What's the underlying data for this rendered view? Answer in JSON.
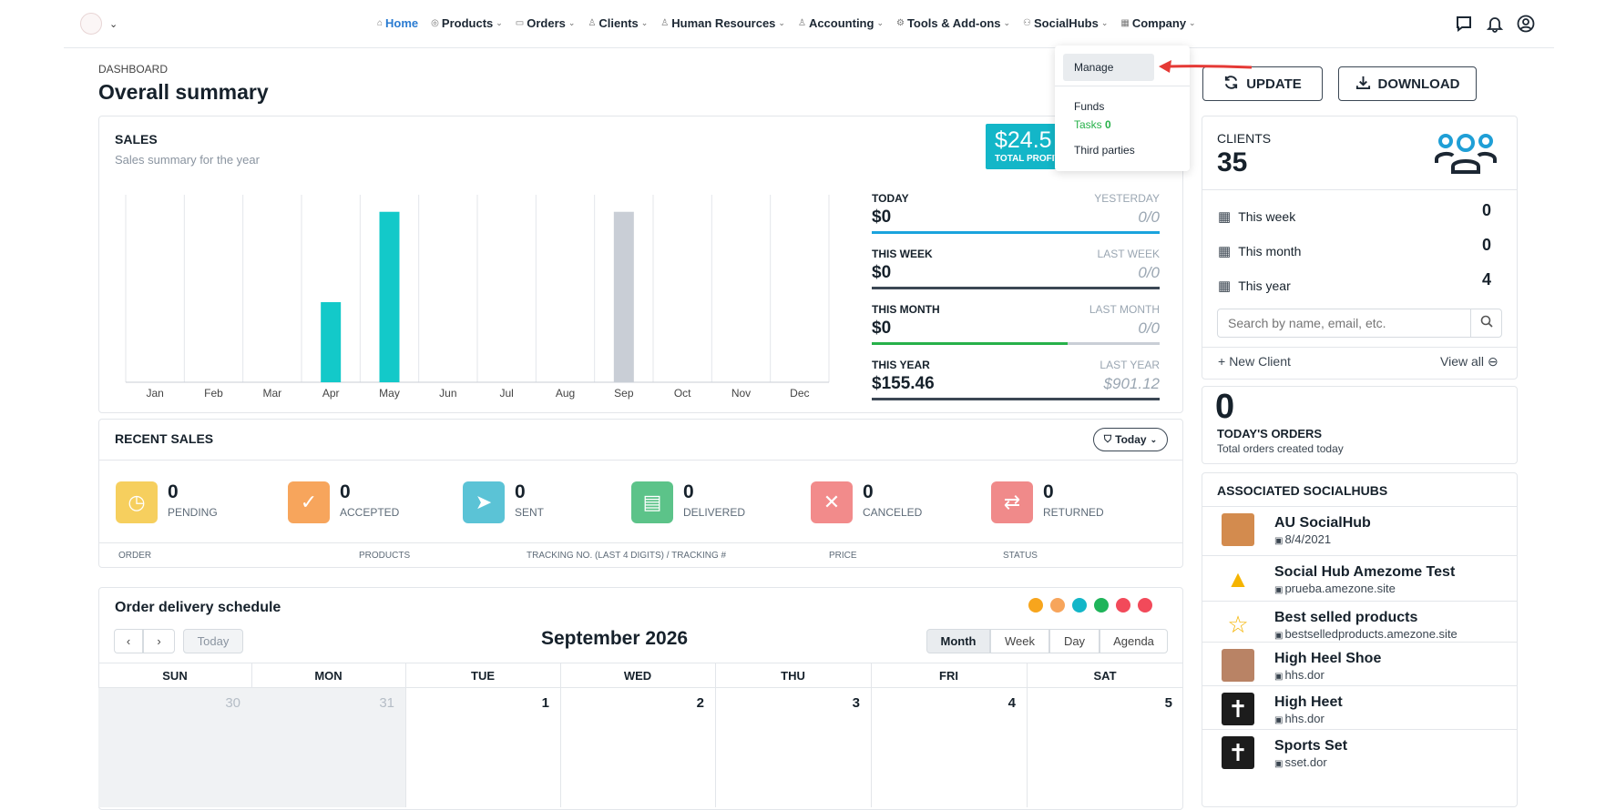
{
  "nav": {
    "items": [
      {
        "label": "Home",
        "active": true
      },
      {
        "label": "Products"
      },
      {
        "label": "Orders"
      },
      {
        "label": "Clients"
      },
      {
        "label": "Human Resources"
      },
      {
        "label": "Accounting"
      },
      {
        "label": "Tools & Add-ons"
      },
      {
        "label": "SocialHubs"
      },
      {
        "label": "Company"
      }
    ]
  },
  "header": {
    "breadcrumb": "DASHBOARD",
    "title": "Overall summary",
    "update_label": "UPDATE",
    "download_label": "DOWNLOAD"
  },
  "dropdown": {
    "manage": "Manage",
    "funds": "Funds",
    "tasks": "Tasks",
    "tasks_count": "0",
    "third_parties": "Third parties"
  },
  "sales": {
    "title": "SALES",
    "subtitle": "Sales summary for the year",
    "profit_value": "$24.5",
    "profit_label": "TOTAL PROFIT",
    "stats": [
      {
        "label": "TODAY",
        "value": "$0",
        "prev_label": "YESTERDAY",
        "prev_value": "0/0",
        "bar_color": "#1aa3dd",
        "fill": 1
      },
      {
        "label": "THIS WEEK",
        "value": "$0",
        "prev_label": "LAST WEEK",
        "prev_value": "0/0",
        "bar_color": "#3b4754",
        "fill": 1
      },
      {
        "label": "THIS MONTH",
        "value": "$0",
        "prev_label": "LAST MONTH",
        "prev_value": "0/0",
        "bar_color": "#27b14a",
        "fill": 0.68
      },
      {
        "label": "THIS YEAR",
        "value": "$155.46",
        "prev_label": "LAST YEAR",
        "prev_value": "$901.12",
        "bar_color": "#3b4754",
        "fill": 1
      }
    ]
  },
  "chart_data": {
    "type": "bar",
    "categories": [
      "Jan",
      "Feb",
      "Mar",
      "Apr",
      "May",
      "Jun",
      "Jul",
      "Aug",
      "Sep",
      "Oct",
      "Nov",
      "Dec"
    ],
    "series": [
      {
        "values": [
          0,
          0,
          0,
          0.47,
          1,
          0,
          0,
          0,
          0,
          0,
          0,
          0
        ],
        "color": "#13c9c9"
      },
      {
        "values": [
          0,
          0,
          0,
          0,
          0,
          0,
          0,
          0,
          1,
          0,
          0,
          0
        ],
        "color": "#c9ced6"
      }
    ],
    "ylim": [
      0,
      1.1
    ],
    "grid": true
  },
  "recent": {
    "title": "RECENT SALES",
    "filter_label": "Today",
    "statuses": [
      {
        "count": "0",
        "label": "PENDING",
        "color": "#f6cf5e",
        "icon": "clock-icon",
        "glyph": "◷"
      },
      {
        "count": "0",
        "label": "ACCEPTED",
        "color": "#f7a55c",
        "icon": "check-icon",
        "glyph": "✓"
      },
      {
        "count": "0",
        "label": "SENT",
        "color": "#5bc3d6",
        "icon": "paper-plane-icon",
        "glyph": "➤"
      },
      {
        "count": "0",
        "label": "DELIVERED",
        "color": "#5cc389",
        "icon": "clipboard-check-icon",
        "glyph": "▤"
      },
      {
        "count": "0",
        "label": "CANCELED",
        "color": "#f28b8b",
        "icon": "x-icon",
        "glyph": "✕"
      },
      {
        "count": "0",
        "label": "RETURNED",
        "color": "#f08a8a",
        "icon": "repeat-icon",
        "glyph": "⇄"
      }
    ],
    "columns": [
      "ORDER",
      "PRODUCTS",
      "TRACKING NO. (LAST 4 DIGITS) / TRACKING #",
      "PRICE",
      "STATUS"
    ]
  },
  "calendar": {
    "title": "Order delivery schedule",
    "month": "September 2026",
    "today_label": "Today",
    "views": [
      "Month",
      "Week",
      "Day",
      "Agenda"
    ],
    "dots": [
      "#f7a51d",
      "#f7a55c",
      "#13b6c8",
      "#1fb45a",
      "#f24a5a",
      "#f24a5a"
    ],
    "days": [
      "SUN",
      "MON",
      "TUE",
      "WED",
      "THU",
      "FRI",
      "SAT"
    ],
    "dates": [
      "30",
      "31",
      "1",
      "2",
      "3",
      "4",
      "5"
    ]
  },
  "clients": {
    "label": "CLIENTS",
    "count": "35",
    "rows": [
      {
        "label": "This week",
        "value": "0"
      },
      {
        "label": "This month",
        "value": "0"
      },
      {
        "label": "This year",
        "value": "4"
      }
    ],
    "search_placeholder": "Search by name, email, etc.",
    "new_label": "New Client",
    "view_all": "View all"
  },
  "orders": {
    "count": "0",
    "label": "TODAY'S ORDERS",
    "sub": "Total orders created today"
  },
  "hubs": {
    "title": "ASSOCIATED SOCIALHUBS",
    "items": [
      {
        "name": "AU SocialHub",
        "sub": "8/4/2021"
      },
      {
        "name": "Social Hub Amezome Test",
        "sub": "prueba.amezone.site"
      },
      {
        "name": "Best selled products",
        "sub": "bestselledproducts.amezone.site"
      },
      {
        "name": "High Heel Shoe",
        "sub": "hhs.dor"
      },
      {
        "name": "High Heet",
        "sub": "hhs.dor"
      },
      {
        "name": "Sports Set",
        "sub": "sset.dor"
      }
    ]
  }
}
